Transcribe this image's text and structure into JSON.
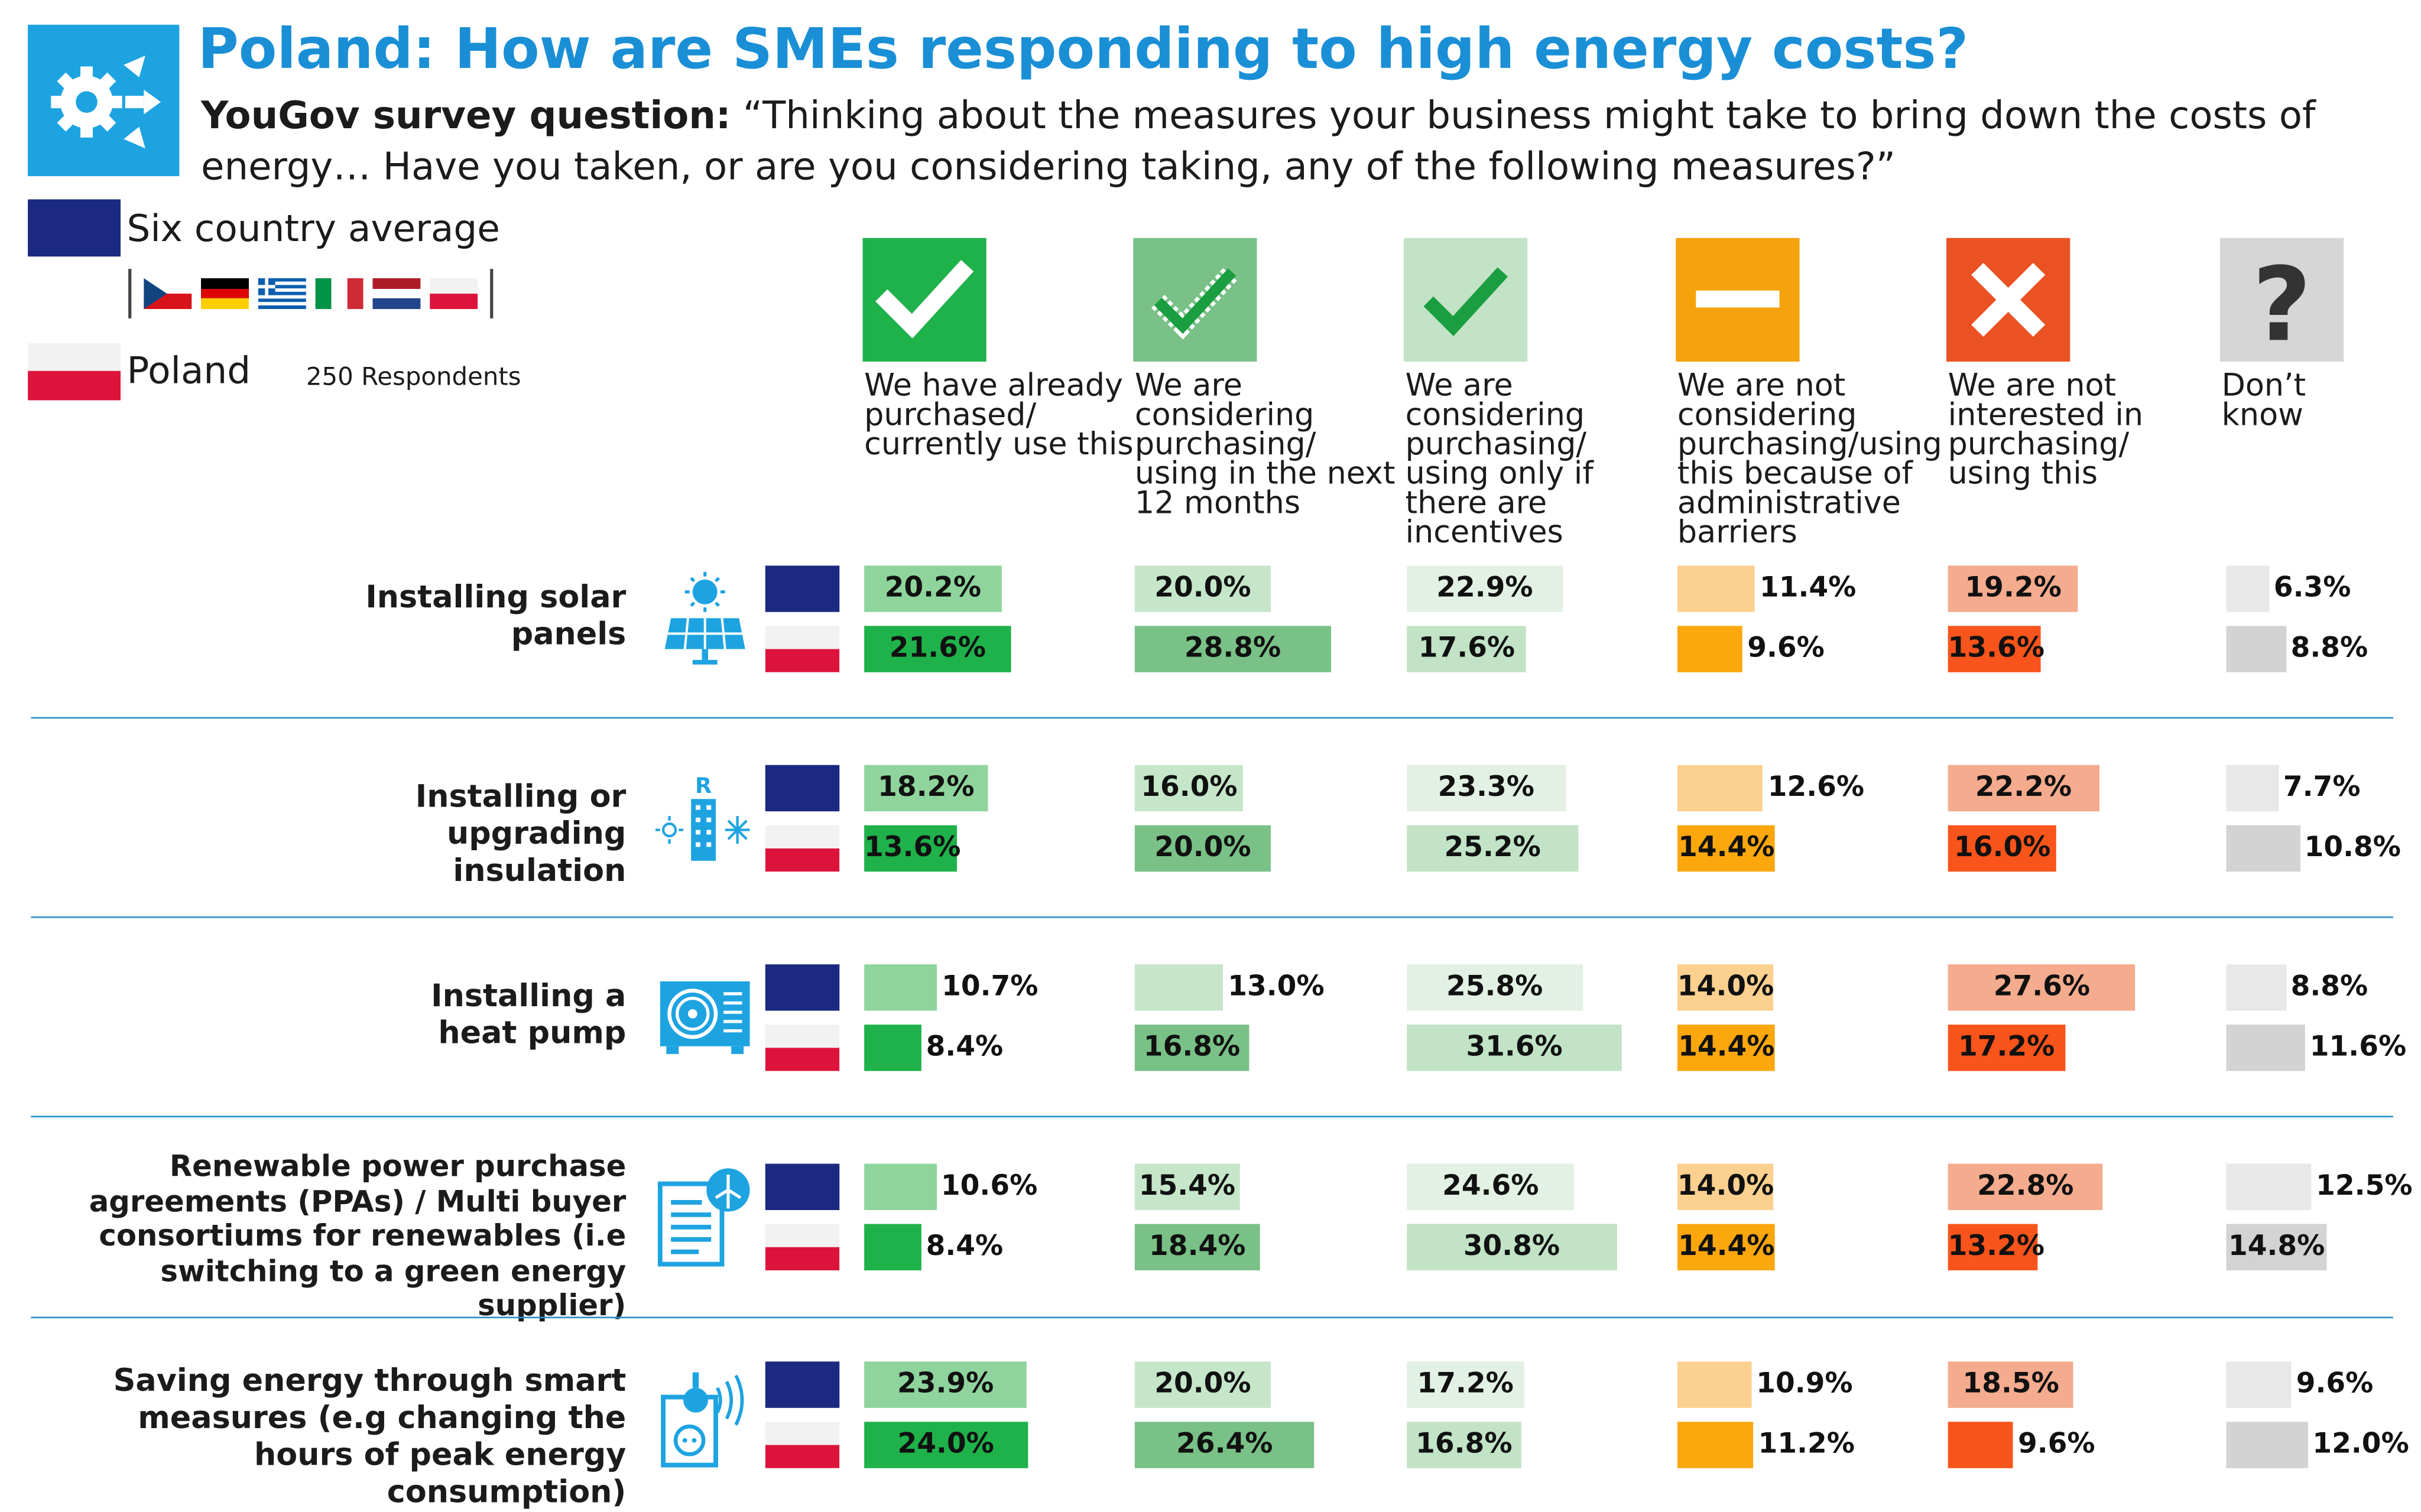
{
  "title": "Poland: How are SMEs responding to high energy costs?",
  "question_label": "YouGov survey question:",
  "question_text": " “Thinking about the measures your business might take to bring down the costs of energy… Have you taken, or are you considering taking, any of the following measures?”",
  "legend": {
    "average_label": "Six country average",
    "average_color": "#1b2a80",
    "country_label": "Poland",
    "respondents": "250 Respondents",
    "country_flags": [
      "czech-republic",
      "germany",
      "greece",
      "italy",
      "netherlands",
      "poland"
    ]
  },
  "chart_data": {
    "type": "bar",
    "orientation": "horizontal",
    "xlim": [
      0,
      100
    ],
    "series": [
      {
        "name": "Six country average"
      },
      {
        "name": "Poland"
      }
    ],
    "columns": [
      {
        "label": "We have already purchased/ currently use this",
        "icon": "check-icon",
        "color_avg": "#8fd49d",
        "color_country": "#1fb14a"
      },
      {
        "label": "We are considering purchasing/ using in the next 12 months",
        "icon": "dotted-check-icon",
        "color_avg": "#c6e6c9",
        "color_country": "#79c187"
      },
      {
        "label": "We are considering purchasing/ using only if there are incentives",
        "icon": "check-light-icon",
        "color_avg": "#e2f1e3",
        "color_country": "#c2e3c6"
      },
      {
        "label": "We are not considering purchasing/using this because of administrative barriers",
        "icon": "minus-icon",
        "color_avg": "#fcd08f",
        "color_country": "#fca70d"
      },
      {
        "label": "We are not interested in purchasing/ using this",
        "icon": "cross-icon",
        "color_avg": "#f4ab8e",
        "color_country": "#f9541b"
      },
      {
        "label": "Don’t know",
        "icon": "question-icon",
        "color_avg": "#e8e8e8",
        "color_country": "#d3d3d3"
      }
    ],
    "rows": [
      {
        "label": "Installing solar panels",
        "icon": "solar-panel-icon",
        "avg": [
          20.2,
          20.0,
          22.9,
          11.4,
          19.2,
          6.3
        ],
        "country": [
          21.6,
          28.8,
          17.6,
          9.6,
          13.6,
          8.8
        ],
        "avg_labels": [
          "20.2%",
          "20.0%",
          "22.9%",
          "11.4%",
          "19.2%",
          "6.3%"
        ],
        "country_labels": [
          "21.6%",
          "28.8%",
          "17.6%",
          "9.6%",
          "13.6%",
          "8.8%"
        ]
      },
      {
        "label": "Installing or upgrading insulation",
        "icon": "insulation-icon",
        "avg": [
          18.2,
          16.0,
          23.3,
          12.6,
          22.2,
          7.7
        ],
        "country": [
          13.6,
          20.0,
          25.2,
          14.4,
          16.0,
          10.8
        ],
        "avg_labels": [
          "18.2%",
          "16.0%",
          "23.3%",
          "12.6%",
          "22.2%",
          "7.7%"
        ],
        "country_labels": [
          "13.6%",
          "20.0%",
          "25.2%",
          "14.4%",
          "16.0%",
          "10.8%"
        ]
      },
      {
        "label": "Installing a heat pump",
        "icon": "heat-pump-icon",
        "avg": [
          10.7,
          13.0,
          25.8,
          14.0,
          27.6,
          8.8
        ],
        "country": [
          8.4,
          16.8,
          31.6,
          14.4,
          17.2,
          11.6
        ],
        "avg_labels": [
          "10.7%",
          "13.0%",
          "25.8%",
          "14.0%",
          "27.6%",
          "8.8%"
        ],
        "country_labels": [
          "8.4%",
          "16.8%",
          "31.6%",
          "14.4%",
          "17.2%",
          "11.6%"
        ]
      },
      {
        "label": "Renewable power purchase agreements (PPAs) / Multi buyer consortiums for renewables (i.e switching to a green energy supplier)",
        "icon": "ppa-document-icon",
        "avg": [
          10.6,
          15.4,
          24.6,
          14.0,
          22.8,
          12.5
        ],
        "country": [
          8.4,
          18.4,
          30.8,
          14.4,
          13.2,
          14.8
        ],
        "avg_labels": [
          "10.6%",
          "15.4%",
          "24.6%",
          "14.0%",
          "22.8%",
          "12.5%"
        ],
        "country_labels": [
          "8.4%",
          "18.4%",
          "30.8%",
          "14.4%",
          "13.2%",
          "14.8%"
        ]
      },
      {
        "label": "Saving energy through smart measures (e.g changing the hours of peak energy consumption)",
        "icon": "smart-plug-icon",
        "avg": [
          23.9,
          20.0,
          17.2,
          10.9,
          18.5,
          9.6
        ],
        "country": [
          24.0,
          26.4,
          16.8,
          11.2,
          9.6,
          12.0
        ],
        "avg_labels": [
          "23.9%",
          "20.0%",
          "17.2%",
          "10.9%",
          "18.5%",
          "9.6%"
        ],
        "country_labels": [
          "24.0%",
          "26.4%",
          "16.8%",
          "11.2%",
          "9.6%",
          "12.0%"
        ]
      }
    ]
  }
}
